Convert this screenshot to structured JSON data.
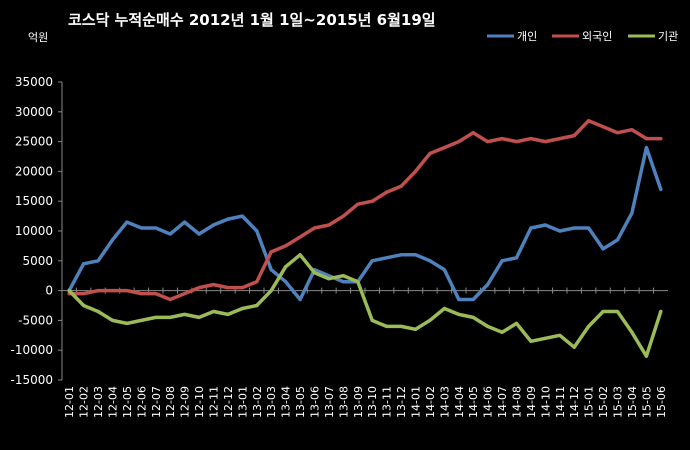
{
  "chart_data": {
    "type": "line",
    "title": "코스닥 누적순매수 2012년 1월 1일~2015년 6월19일",
    "unit_label": "억원",
    "ylim": [
      -15000,
      35000
    ],
    "yticks": [
      35000,
      30000,
      25000,
      20000,
      15000,
      10000,
      5000,
      0,
      -5000,
      -10000,
      -15000
    ],
    "x": [
      "12-01",
      "12-02",
      "12-03",
      "12-04",
      "12-05",
      "12-06",
      "12-07",
      "12-08",
      "12-09",
      "12-10",
      "12-11",
      "12-12",
      "13-01",
      "13-02",
      "13-03",
      "13-04",
      "13-05",
      "13-06",
      "13-07",
      "13-08",
      "13-09",
      "13-10",
      "13-11",
      "13-12",
      "14-01",
      "14-02",
      "14-03",
      "14-04",
      "14-05",
      "14-06",
      "14-07",
      "14-08",
      "14-09",
      "14-10",
      "14-11",
      "14-12",
      "15-01",
      "15-02",
      "15-03",
      "15-04",
      "15-05",
      "15-06"
    ],
    "grid": false,
    "legend_position": "top-right",
    "series": [
      {
        "name": "개인",
        "color": "#4f81bd",
        "values": [
          0,
          4500,
          5000,
          8500,
          11500,
          10500,
          10500,
          9500,
          11500,
          9500,
          11000,
          12000,
          12500,
          10000,
          3500,
          1500,
          -1500,
          3500,
          2500,
          1500,
          1500,
          5000,
          5500,
          6000,
          6000,
          5000,
          3500,
          -1500,
          -1500,
          1000,
          5000,
          5500,
          10500,
          11000,
          10000,
          10500,
          10500,
          7000,
          8500,
          13000,
          24000,
          17000
        ]
      },
      {
        "name": "외국인",
        "color": "#c0504d",
        "values": [
          -500,
          -500,
          0,
          0,
          0,
          -500,
          -500,
          -1500,
          -500,
          500,
          1000,
          500,
          500,
          1500,
          6500,
          7500,
          9000,
          10500,
          11000,
          12500,
          14500,
          15000,
          16500,
          17500,
          20000,
          23000,
          24000,
          25000,
          26500,
          25000,
          25500,
          25000,
          25500,
          25000,
          25500,
          26000,
          28500,
          27500,
          26500,
          27000,
          25500,
          25500
        ]
      },
      {
        "name": "기관",
        "color": "#9bbb59",
        "values": [
          0,
          -2500,
          -3500,
          -5000,
          -5500,
          -5000,
          -4500,
          -4500,
          -4000,
          -4500,
          -3500,
          -4000,
          -3000,
          -2500,
          0,
          4000,
          6000,
          3000,
          2000,
          2500,
          1500,
          -5000,
          -6000,
          -6000,
          -6500,
          -5000,
          -3000,
          -4000,
          -4500,
          -6000,
          -7000,
          -5500,
          -8500,
          -8000,
          -7500,
          -9500,
          -6000,
          -3500,
          -3500,
          -7000,
          -11000,
          -3500
        ]
      }
    ]
  }
}
